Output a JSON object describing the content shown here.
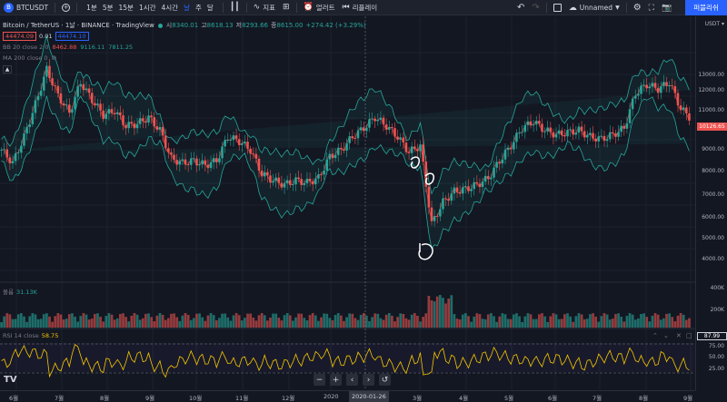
{
  "toolbar": {
    "symbol": "BTCUSDT",
    "symbol_badge": "B",
    "timeframes": [
      "1분",
      "5분",
      "15분",
      "1시간",
      "4시간",
      "날",
      "주",
      "달"
    ],
    "active_timeframe": "날",
    "indicators_label": "지표",
    "alert_label": "얼러트",
    "replay_label": "리플레이",
    "layout_name": "Unnamed",
    "publish_label": "퍼블리쉬"
  },
  "legend": {
    "title": "Bitcoin / TetherUS · 1날 · BINANCE · TradingView",
    "open_label": "시",
    "open": "8340.01",
    "high_label": "고",
    "high": "8618.13",
    "low_label": "저",
    "low": "8293.66",
    "close_label": "종",
    "close": "8615.00",
    "change": "+274.42 (+3.29%)",
    "bid": "44474.09",
    "spread": "0.01",
    "ask": "44474.10",
    "bb_label": "BB 20 close 2 0",
    "bb_v1": "8462.88",
    "bb_v2": "9116.11",
    "bb_v3": "7811.25",
    "ma_label": "MA 200 close 0"
  },
  "volume": {
    "label": "볼륨",
    "value": "31.13K"
  },
  "rsi": {
    "label": "RSI 14 close",
    "value": "58.75"
  },
  "price_scale": {
    "currency": "USDT",
    "labels": [
      "13000.00",
      "12000.00",
      "11000.00",
      "9000.00",
      "8000.00",
      "7000.00",
      "6000.00",
      "5000.00",
      "4000.00"
    ],
    "last_price": "10126.65",
    "vol_labels": [
      "400K",
      "200K"
    ],
    "rsi_labels": [
      "75.00",
      "50.00",
      "25.00"
    ],
    "rsi_last": "87.99"
  },
  "time_axis": {
    "labels": [
      "6월",
      "7월",
      "8월",
      "9월",
      "10월",
      "11월",
      "12월",
      "2020",
      "3월",
      "4월",
      "5월",
      "6월",
      "7월",
      "8월",
      "9월"
    ],
    "highlight": "2020-01-26"
  },
  "colors": {
    "up": "#26a69a",
    "down": "#ef5350",
    "accent": "#2962ff",
    "rsi": "#f7c600",
    "band": "#26a69a"
  },
  "chart_data": {
    "type": "candlestick",
    "ylim": [
      3500,
      13500
    ],
    "series_close": [
      8700,
      8100,
      9300,
      10800,
      12400,
      11200,
      10400,
      11800,
      11000,
      10300,
      10500,
      9800,
      9900,
      10200,
      9600,
      8300,
      8100,
      8200,
      8000,
      8200,
      9300,
      9100,
      8700,
      7600,
      7300,
      7100,
      7300,
      7200,
      7400,
      8400,
      8700,
      9300,
      9700,
      10200,
      9800,
      9300,
      8600,
      8900,
      5300,
      6300,
      6800,
      6900,
      7100,
      7400,
      8200,
      8900,
      9700,
      10000,
      9600,
      9400,
      9500,
      9600,
      9300,
      9200,
      9400,
      9700,
      11300,
      11700,
      11500,
      11800,
      10600,
      10100
    ]
  }
}
